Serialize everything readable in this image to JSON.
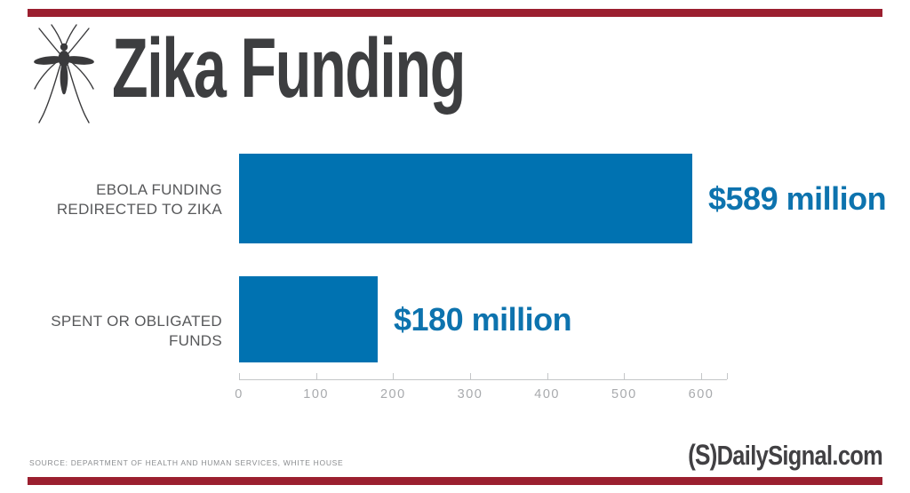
{
  "brand": {
    "accent_color": "#9b1f2f",
    "logo_prefix": "(S)",
    "logo_text": "DailySignal.com"
  },
  "header": {
    "title": "Zika Funding",
    "icon": "mosquito-icon"
  },
  "chart_data": {
    "type": "bar",
    "orientation": "horizontal",
    "title": "Zika Funding",
    "xlim": [
      0,
      600
    ],
    "x_ticks": [
      "0",
      "100",
      "200",
      "300",
      "400",
      "500",
      "600"
    ],
    "grid": false,
    "legend": false,
    "bar_color": "#0072b1",
    "value_label_color": "#0d73ae",
    "rows": [
      {
        "category": "EBOLA FUNDING REDIRECTED TO ZIKA",
        "label_lines": [
          "EBOLA FUNDING",
          "REDIRECTED TO ZIKA"
        ],
        "value": 589,
        "value_label": "$589 million"
      },
      {
        "category": "SPENT OR OBLIGATED FUNDS",
        "label_lines": [
          "SPENT OR OBLIGATED FUNDS"
        ],
        "value": 180,
        "value_label": "$180 million"
      }
    ]
  },
  "footer": {
    "source": "SOURCE: DEPARTMENT OF HEALTH AND HUMAN SERVICES, WHITE HOUSE"
  }
}
